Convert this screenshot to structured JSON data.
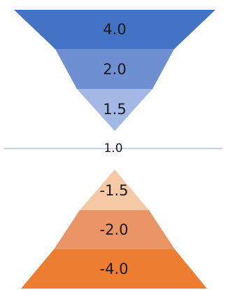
{
  "top_funnel": {
    "bands": [
      {
        "label": "4.0",
        "color": "#4472C4"
      },
      {
        "label": "2.0",
        "color": "#6E8FD2"
      },
      {
        "label": "1.5",
        "color": "#A3B8E5"
      }
    ]
  },
  "center": {
    "label": "1.0",
    "line_color": "#8EA9C8"
  },
  "bottom_pyramid": {
    "bands": [
      {
        "label": "-1.5",
        "color": "#F6C9A6"
      },
      {
        "label": "-2.0",
        "color": "#E99565"
      },
      {
        "label": "-4.0",
        "color": "#ED7D31"
      }
    ]
  }
}
